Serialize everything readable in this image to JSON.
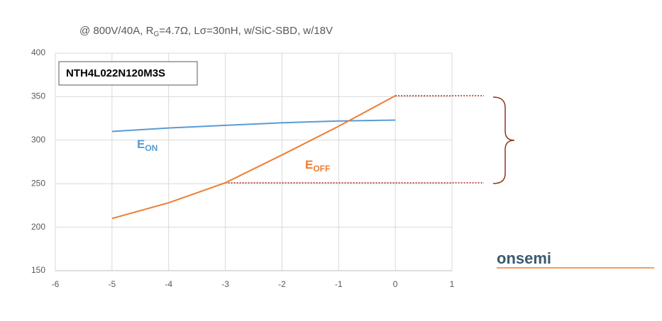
{
  "chart_data": {
    "type": "line",
    "title_parts": [
      "@ 800V/40A, R",
      "G",
      "=4.7Ω, Lσ=30nH, w/SiC-SBD, w/18V"
    ],
    "annotation": "NTH4L022N120M3S",
    "logo": "onsemi",
    "x": [
      -5,
      -4,
      -3,
      -2,
      -1,
      0
    ],
    "series": [
      {
        "name_base": "E",
        "name_sub": "ON",
        "color": "#5b9bd5",
        "values": [
          310,
          314,
          317,
          320,
          322,
          323
        ]
      },
      {
        "name_base": "E",
        "name_sub": "OFF",
        "color": "#ed7d31",
        "values": [
          210,
          228,
          251,
          283,
          316,
          351
        ]
      }
    ],
    "xlim": [
      -6,
      1
    ],
    "xticks": [
      -6,
      -5,
      -4,
      -3,
      -2,
      -1,
      0,
      1
    ],
    "ylim": [
      150,
      400
    ],
    "yticks": [
      150,
      200,
      250,
      300,
      350,
      400
    ],
    "grid": true
  }
}
